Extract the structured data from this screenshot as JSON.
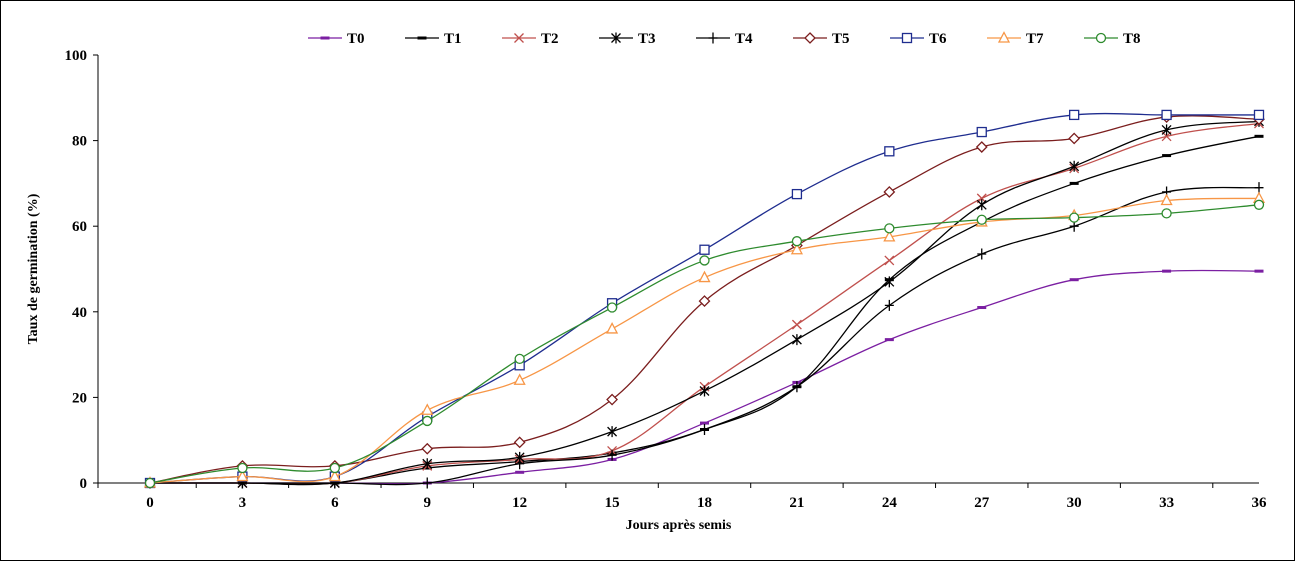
{
  "chart_data": {
    "type": "line",
    "title": "",
    "xlabel": "Jours après semis",
    "ylabel": "Taux de germination (%)",
    "x": [
      0,
      3,
      6,
      9,
      12,
      15,
      18,
      21,
      24,
      27,
      30,
      33,
      36
    ],
    "x_tick_labels": [
      "0",
      "3",
      "6",
      "9",
      "12",
      "15",
      "18",
      "21",
      "24",
      "27",
      "30",
      "33",
      "36"
    ],
    "y_tick_labels": [
      "0",
      "20",
      "40",
      "60",
      "80",
      "100"
    ],
    "ylim": [
      0,
      100
    ],
    "grid": false,
    "legend_position": "top",
    "series": [
      {
        "name": "T0",
        "color": "#7B1FA2",
        "marker": "dash",
        "values": [
          0,
          0,
          0,
          0,
          2.5,
          5.5,
          14,
          23.5,
          33.5,
          41,
          47.5,
          49.5,
          49.5
        ]
      },
      {
        "name": "T1",
        "color": "#000000",
        "marker": "dash",
        "values": [
          0,
          0,
          0,
          3.5,
          5,
          7,
          12.5,
          22.5,
          47.5,
          61,
          70,
          76.5,
          81
        ]
      },
      {
        "name": "T2",
        "color": "#C0504D",
        "marker": "x",
        "values": [
          0,
          0,
          0,
          4,
          5.5,
          7.5,
          22.5,
          37,
          52,
          66.5,
          73.5,
          81,
          84
        ]
      },
      {
        "name": "T3",
        "color": "#000000",
        "marker": "asterisk",
        "values": [
          0,
          0,
          0,
          4.5,
          6,
          12,
          21.5,
          33.5,
          47,
          65,
          74,
          82.5,
          84.5
        ]
      },
      {
        "name": "T4",
        "color": "#000000",
        "marker": "plus",
        "values": [
          0,
          0,
          0,
          0,
          4.5,
          6.5,
          12.5,
          22.5,
          41.5,
          53.5,
          60,
          68,
          69
        ]
      },
      {
        "name": "T5",
        "color": "#7B1E1E",
        "marker": "diamond",
        "values": [
          0,
          4,
          4,
          8,
          9.5,
          19.5,
          42.5,
          55.5,
          68,
          78.5,
          80.5,
          85.5,
          85
        ]
      },
      {
        "name": "T6",
        "color": "#1F2D8F",
        "marker": "square",
        "values": [
          0,
          1.5,
          1.5,
          15.5,
          27.5,
          42,
          54.5,
          67.5,
          77.5,
          82,
          86,
          86,
          86
        ]
      },
      {
        "name": "T7",
        "color": "#F79646",
        "marker": "triangle",
        "values": [
          0,
          1.5,
          1.5,
          17,
          24,
          36,
          48,
          54.5,
          57.5,
          61,
          62.5,
          66,
          66.5
        ]
      },
      {
        "name": "T8",
        "color": "#2E8B2E",
        "marker": "circle",
        "values": [
          0,
          3.5,
          3.5,
          14.5,
          29,
          41,
          52,
          56.5,
          59.5,
          61.5,
          62,
          63,
          65
        ]
      }
    ]
  }
}
